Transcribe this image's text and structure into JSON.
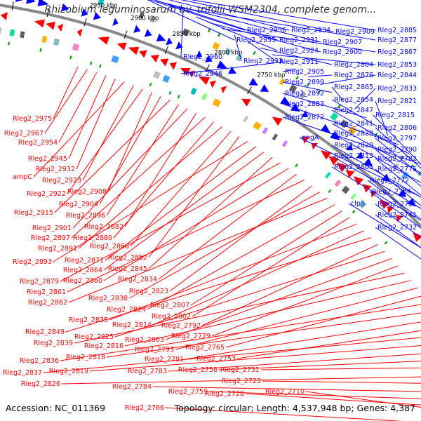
{
  "title": "Rhizobium leguminosarum bv. trifolii WSM2304, complete genom...",
  "accession": "Accession: NC_011369",
  "topology": "Topology: circular; Length: 4,537,948 bp; Genes: 4,387",
  "colors": {
    "forward_strand": "#ff0000",
    "reverse_strand": "#0000ff",
    "backbone": "#888888",
    "tick": "#008000",
    "scale_label": "#000000"
  },
  "scale_ticks": [
    "3050 kbp",
    "3000 kbp",
    "2950 kbp",
    "2900 kbp",
    "2850 kbp",
    "2800 kbp",
    "2750 kbp"
  ],
  "reverse_labels": [
    "Rleg2_2956",
    "Rleg2_2934",
    "Rleg2_2909",
    "Rleg2_2885",
    "Rleg2_2955",
    "Rleg2_2931",
    "Rleg2_2907",
    "Rleg2_2877",
    "Rleg2_2960",
    "Rleg2_2924",
    "Rleg2_2900",
    "Rleg2_2867",
    "Rleg2_2933",
    "Rleg2_2911",
    "Rleg2_2884",
    "Rleg2_2853",
    "Rleg2_2946",
    "Rleg2_2905",
    "Rleg2_2876",
    "Rleg2_2844",
    "Rleg2_2899",
    "Rleg2_2865",
    "Rleg2_2833",
    "Rleg2_2892",
    "Rleg2_2854",
    "Rleg2_2821",
    "Rleg2_2883",
    "Rleg2_2847",
    "Rleg2_2872",
    "Rleg2_2815",
    "Rleg2_2841",
    "Rleg2_2806",
    "Rleg2_2829",
    "Rleg2_2797",
    "engA",
    "Rleg2_2820",
    "Rleg2_2790",
    "Rleg2_2813",
    "Rleg2_2782",
    "Rleg2_2805",
    "Rleg2_2775",
    "Rleg2_2772",
    "Rleg2_2764",
    "clpS",
    "Rleg2_2751",
    "Rleg2_2741",
    "Rleg2_2732"
  ],
  "forward_labels": [
    "Rleg2_2975",
    "Rleg2_2967",
    "Rleg2_2954",
    "Rleg2_2945",
    "Rleg2_2932",
    "ampC",
    "Rleg2_2923",
    "Rleg2_2922",
    "Rleg2_2908",
    "Rleg2_2904",
    "Rleg2_2915",
    "Rleg2_2896",
    "Rleg2_2901",
    "Rleg2_2882",
    "Rleg2_2897",
    "Rleg2_2880",
    "Rleg2_2891",
    "Rleg2_2866",
    "Rleg2_2852",
    "Rleg2_2893",
    "Rleg2_2871",
    "Rleg2_2864",
    "Rleg2_2845",
    "Rleg2_2879",
    "Rleg2_2860",
    "Rleg2_2834",
    "Rleg2_2861",
    "Rleg2_2823",
    "Rleg2_2838",
    "Rleg2_2862",
    "Rleg2_2824",
    "Rleg2_2807",
    "Rleg2_2802",
    "Rleg2_2835",
    "Rleg2_2814",
    "Rleg2_2849",
    "Rleg2_2792",
    "Rleg2_2825",
    "Rleg2_2803",
    "Rleg2_2779",
    "Rleg2_2839",
    "Rleg2_2816",
    "Rleg2_2793",
    "Rleg2_2765",
    "Rleg2_2836",
    "Rleg2_2818",
    "Rleg2_2781",
    "Rleg2_2753",
    "Rleg2_2837",
    "Rleg2_2819",
    "Rleg2_2783",
    "Rleg2_2758",
    "Rleg2_2731",
    "Rleg2_2826",
    "Rleg2_2723",
    "Rleg2_2784",
    "Rleg2_2759",
    "Rleg2_2728",
    "Rleg2_2710",
    "Rleg2_2766"
  ]
}
